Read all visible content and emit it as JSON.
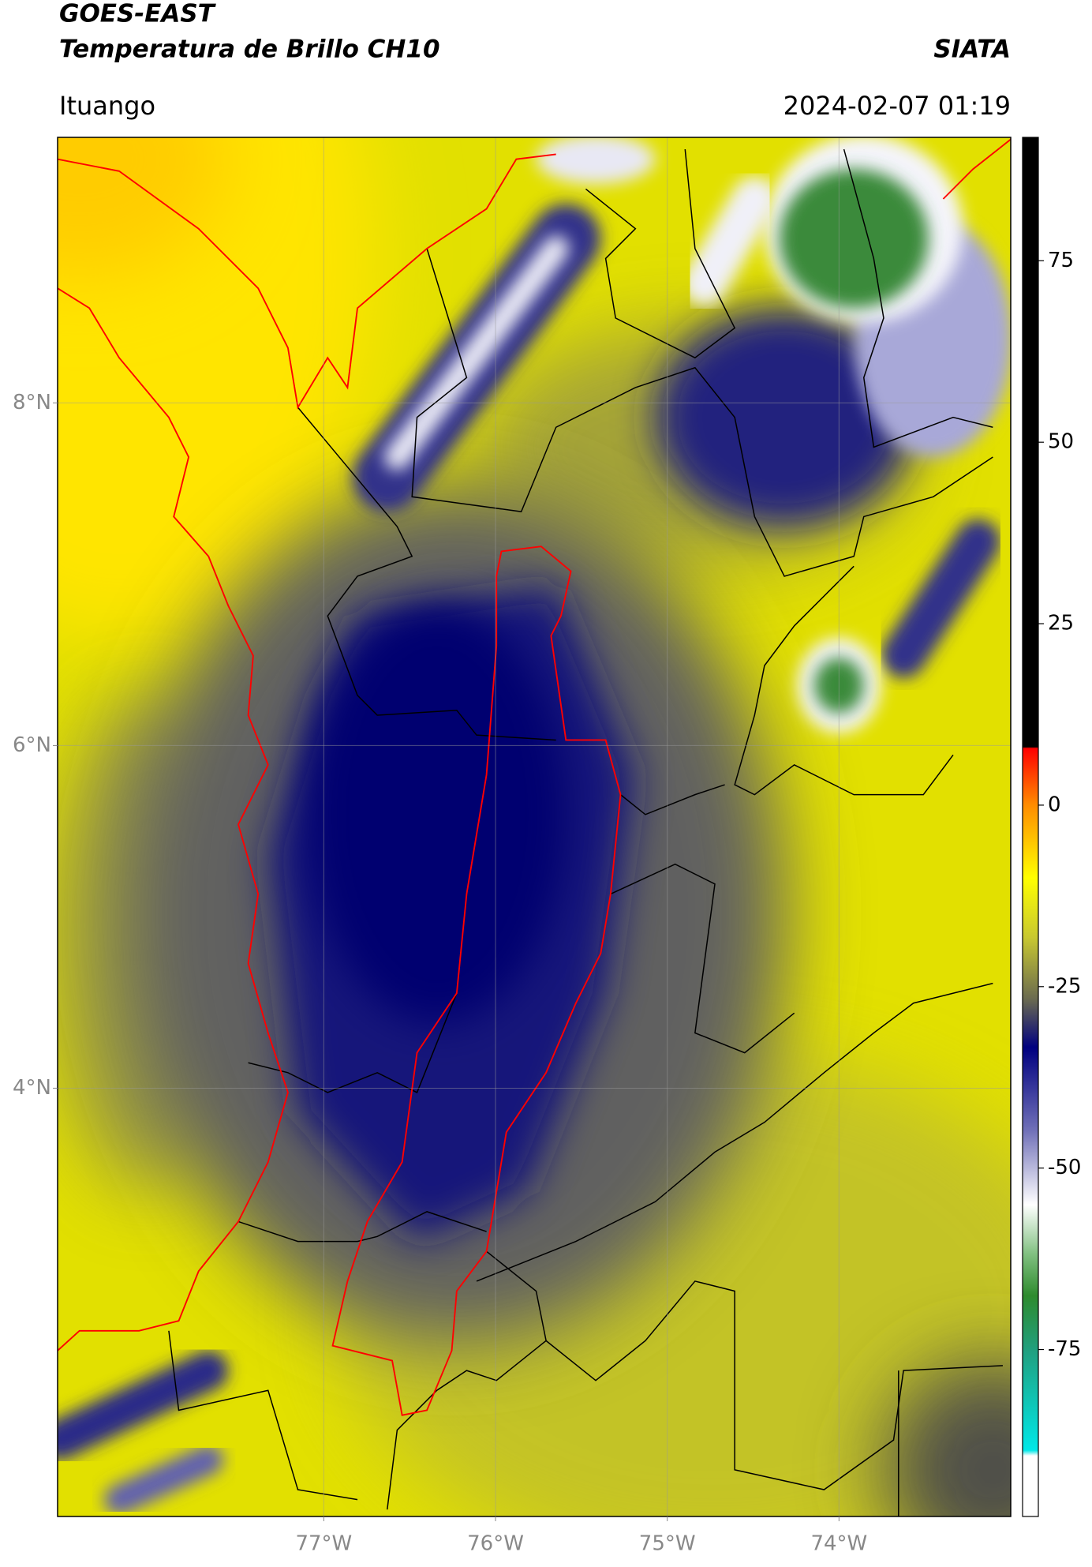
{
  "header": {
    "title": "GOES-EAST",
    "subtitle": "Temperatura de Brillo CH10",
    "brand": "SIATA",
    "location": "Ituango",
    "datetime": "2024-02-07 01:19"
  },
  "map": {
    "xlim": [
      -78.55,
      -73.0
    ],
    "ylim": [
      1.5,
      9.55
    ],
    "xticks": [
      {
        "value": -77,
        "label": "77°W"
      },
      {
        "value": -76,
        "label": "76°W"
      },
      {
        "value": -75,
        "label": "75°W"
      },
      {
        "value": -74,
        "label": "74°W"
      }
    ],
    "yticks": [
      {
        "value": 4,
        "label": "4°N"
      },
      {
        "value": 6,
        "label": "6°N"
      },
      {
        "value": 8,
        "label": "8°N"
      }
    ],
    "grid": true
  },
  "colorbar": {
    "lim": [
      -98,
      92
    ],
    "ticks": [
      -75,
      -50,
      -25,
      0,
      25,
      50,
      75
    ]
  }
}
